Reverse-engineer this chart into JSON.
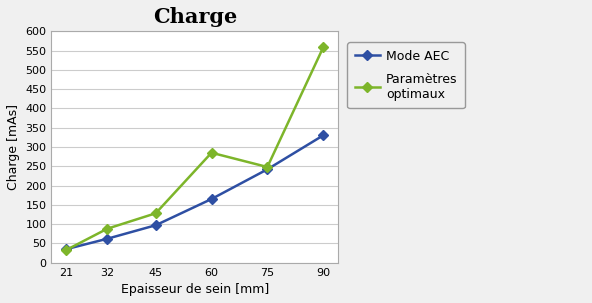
{
  "title": "Charge",
  "xlabel": "Epaisseur de sein [mm]",
  "ylabel": "Charge [mAs]",
  "x": [
    21,
    32,
    45,
    60,
    75,
    90
  ],
  "mode_aec": [
    35,
    62,
    97,
    165,
    242,
    330
  ],
  "parametres_optimaux": [
    33,
    88,
    128,
    285,
    248,
    558
  ],
  "aec_color": "#2E4FA3",
  "opt_color": "#7DB52A",
  "aec_label": "Mode AEC",
  "opt_label": "Paramètres\noptimaux",
  "ylim": [
    0,
    600
  ],
  "yticks": [
    0,
    50,
    100,
    150,
    200,
    250,
    300,
    350,
    400,
    450,
    500,
    550,
    600
  ],
  "xticks": [
    21,
    32,
    45,
    60,
    75,
    90
  ],
  "title_fontsize": 15,
  "label_fontsize": 9,
  "tick_fontsize": 8,
  "legend_fontsize": 9,
  "figure_facecolor": "#F0F0F0",
  "plot_facecolor": "#FFFFFF",
  "grid_color": "#CCCCCC",
  "marker_size": 5,
  "line_width": 1.8
}
